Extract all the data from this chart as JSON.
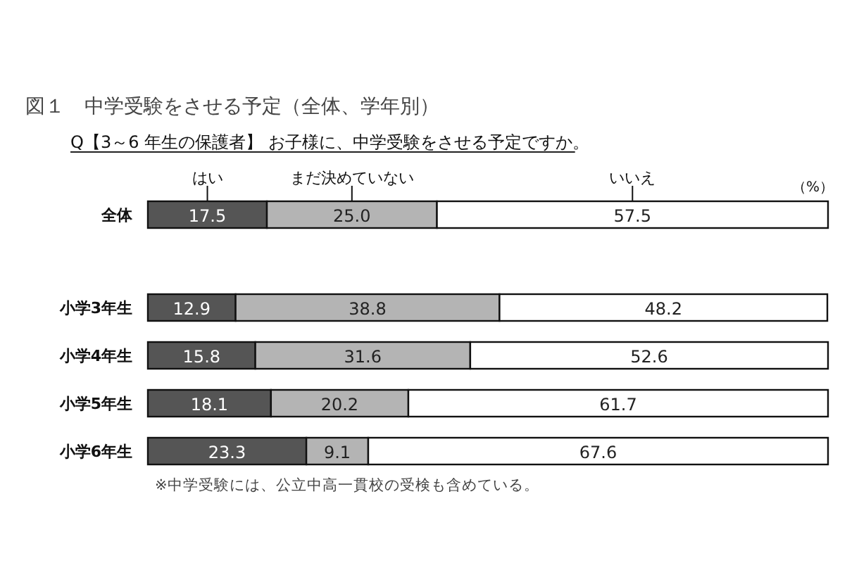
{
  "chart_data": {
    "type": "bar",
    "orientation": "horizontal",
    "stacked": true,
    "legend": "top",
    "title": "図１　中学受験をさせる予定（全体、学年別）",
    "subtitle": "Q【3～6 年生の保護者】 お子様に、中学受験をさせる予定ですか。",
    "annotations": [
      "（%）",
      "※中学受験には、公立中高一貫校の受検も含めている。"
    ],
    "xlim": [
      0,
      100
    ],
    "categories": [
      "全体",
      "小学3年生",
      "小学4年生",
      "小学5年生",
      "小学6年生"
    ],
    "series": [
      {
        "name": "はい",
        "color": "#555555",
        "values": [
          17.5,
          12.9,
          15.8,
          18.1,
          23.3
        ],
        "value_labels": [
          "17.5",
          "12.9",
          "15.8",
          "18.1",
          "23.3"
        ]
      },
      {
        "name": "まだ決めていない",
        "color": "#b4b4b4",
        "values": [
          25.0,
          38.8,
          31.6,
          20.2,
          9.1
        ],
        "value_labels": [
          "25.0",
          "38.8",
          "31.6",
          "20.2",
          "9.1"
        ]
      },
      {
        "name": "いいえ",
        "color": "#ffffff",
        "values": [
          57.5,
          48.2,
          52.6,
          61.7,
          67.6
        ],
        "value_labels": [
          "57.5",
          "48.2",
          "52.6",
          "61.7",
          "67.6"
        ]
      }
    ]
  }
}
